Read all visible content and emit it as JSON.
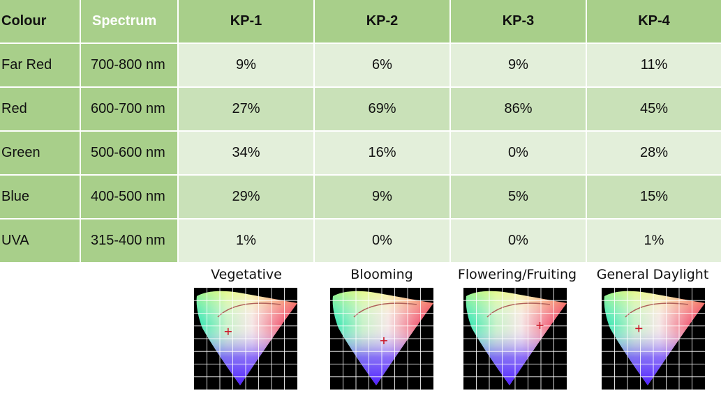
{
  "table": {
    "headers": [
      "Colour",
      "Spectrum",
      "KP-1",
      "KP-2",
      "KP-3",
      "KP-4"
    ],
    "rows": [
      {
        "colour": "Far Red",
        "spectrum": "700-800 nm",
        "kp1": "9%",
        "kp2": "6%",
        "kp3": "9%",
        "kp4": "11%"
      },
      {
        "colour": "Red",
        "spectrum": "600-700 nm",
        "kp1": "27%",
        "kp2": "69%",
        "kp3": "86%",
        "kp4": "45%"
      },
      {
        "colour": "Green",
        "spectrum": "500-600 nm",
        "kp1": "34%",
        "kp2": "16%",
        "kp3": "0%",
        "kp4": "28%"
      },
      {
        "colour": "Blue",
        "spectrum": "400-500 nm",
        "kp1": "29%",
        "kp2": "9%",
        "kp3": "5%",
        "kp4": "15%"
      },
      {
        "colour": "UVA",
        "spectrum": "315-400 nm",
        "kp1": "1%",
        "kp2": "0%",
        "kp3": "0%",
        "kp4": "1%"
      }
    ]
  },
  "cie_charts": [
    {
      "caption": "Vegetative",
      "marker": [
        0.33,
        0.43
      ]
    },
    {
      "caption": "Blooming",
      "marker": [
        0.52,
        0.52
      ]
    },
    {
      "caption": "Flowering/Fruiting",
      "marker": [
        0.74,
        0.37
      ]
    },
    {
      "caption": "General Daylight",
      "marker": [
        0.36,
        0.4
      ]
    }
  ],
  "colors": {
    "header_green": "#a8cf8a",
    "row_light": "#e3efda",
    "row_mid": "#c9e1b8",
    "marker_red": "#cc1a2a"
  }
}
